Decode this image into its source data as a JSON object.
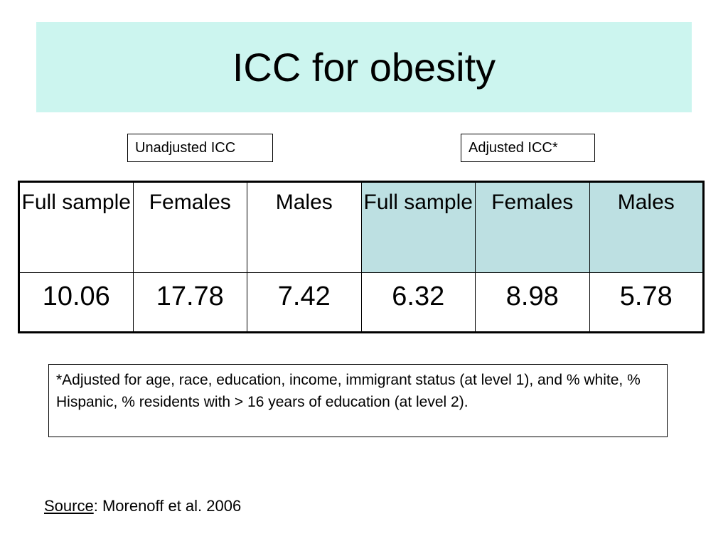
{
  "slide": {
    "title": "ICC for obesity",
    "header_color": "#ccf5ef",
    "adjusted_header_color": "#bde0e2"
  },
  "labels": {
    "unadjusted": "Unadjusted ICC",
    "adjusted": "Adjusted ICC*"
  },
  "table": {
    "headers": [
      "Full sample",
      "Females",
      "Males",
      "Full sample",
      "Females",
      "Males"
    ],
    "values": [
      "10.06",
      "17.78",
      "7.42",
      "6.32",
      "8.98",
      "5.78"
    ]
  },
  "footnote": "*Adjusted for age, race, education, income, immigrant status (at level 1), and % white, % Hispanic, % residents with > 16 years of education (at level 2).",
  "source": {
    "label": "Source",
    "text": ": Morenoff et al. 2006"
  }
}
